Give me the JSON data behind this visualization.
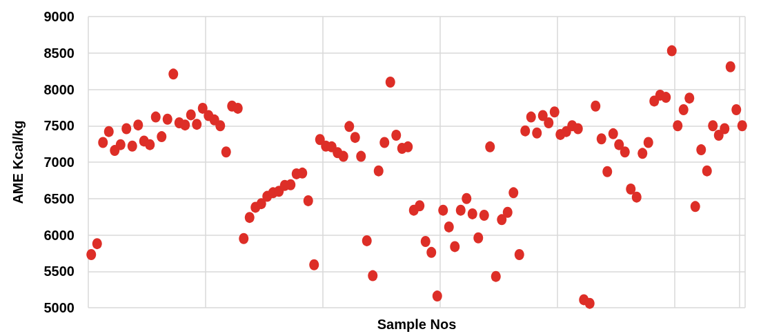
{
  "chart_data": {
    "type": "scatter",
    "xlabel": "Sample Nos",
    "ylabel": "AME Kcal/kg",
    "categories": [
      null,
      null,
      null,
      null,
      null,
      null,
      null,
      null,
      null,
      null,
      null,
      null,
      null,
      null,
      null,
      null,
      null,
      null,
      null,
      null,
      null,
      null,
      null,
      null,
      null,
      null,
      null,
      null,
      null,
      null,
      null,
      null,
      null,
      null,
      null,
      null,
      null,
      null,
      null,
      null,
      null,
      null,
      null,
      null,
      null,
      null,
      null,
      null,
      null,
      null,
      null,
      null,
      null,
      null,
      null,
      null,
      null,
      null,
      null,
      null,
      null,
      null,
      null,
      null,
      null,
      null,
      null,
      null,
      null,
      null,
      null,
      null,
      null,
      null,
      null,
      null,
      null,
      null,
      null,
      null,
      null,
      null,
      null,
      null,
      null,
      null,
      null,
      null,
      null,
      null,
      null,
      null,
      null,
      null,
      null,
      null,
      null,
      null,
      null,
      null,
      null,
      null,
      null,
      null,
      null,
      null,
      null,
      null,
      null,
      null,
      null,
      null
    ],
    "values": [
      5730,
      5880,
      7270,
      7420,
      7160,
      7240,
      7460,
      7220,
      7510,
      7290,
      7240,
      7620,
      7350,
      7590,
      8210,
      7540,
      7510,
      7650,
      7520,
      7740,
      7640,
      7580,
      7500,
      7140,
      7770,
      7740,
      5950,
      6240,
      6380,
      6430,
      6530,
      6580,
      6600,
      6680,
      6690,
      6840,
      6850,
      6470,
      5590,
      7310,
      7220,
      7210,
      7130,
      7080,
      7490,
      7340,
      7080,
      5920,
      5440,
      6880,
      7270,
      8100,
      7370,
      7190,
      7210,
      6340,
      6400,
      5910,
      5760,
      5160,
      6340,
      6110,
      5840,
      6340,
      6500,
      6290,
      5960,
      6270,
      7210,
      5430,
      6210,
      6310,
      6580,
      5730,
      7430,
      7620,
      7400,
      7640,
      7540,
      7690,
      7380,
      7420,
      7500,
      7460,
      5110,
      5060,
      7770,
      7320,
      6870,
      7390,
      7240,
      7140,
      6630,
      6520,
      7120,
      7270,
      7840,
      7920,
      7890,
      8530,
      7500,
      7720,
      7880,
      6390,
      7170,
      6880,
      7500,
      7370,
      7460,
      8310,
      7720,
      7500
    ],
    "color": "#dd2e27",
    "marker": "circle",
    "ylim": [
      5000,
      9000
    ],
    "yticks": [
      5000,
      5500,
      6000,
      6500,
      7000,
      7500,
      8000,
      8500,
      9000
    ],
    "grid": true,
    "tick_labels": "y"
  }
}
